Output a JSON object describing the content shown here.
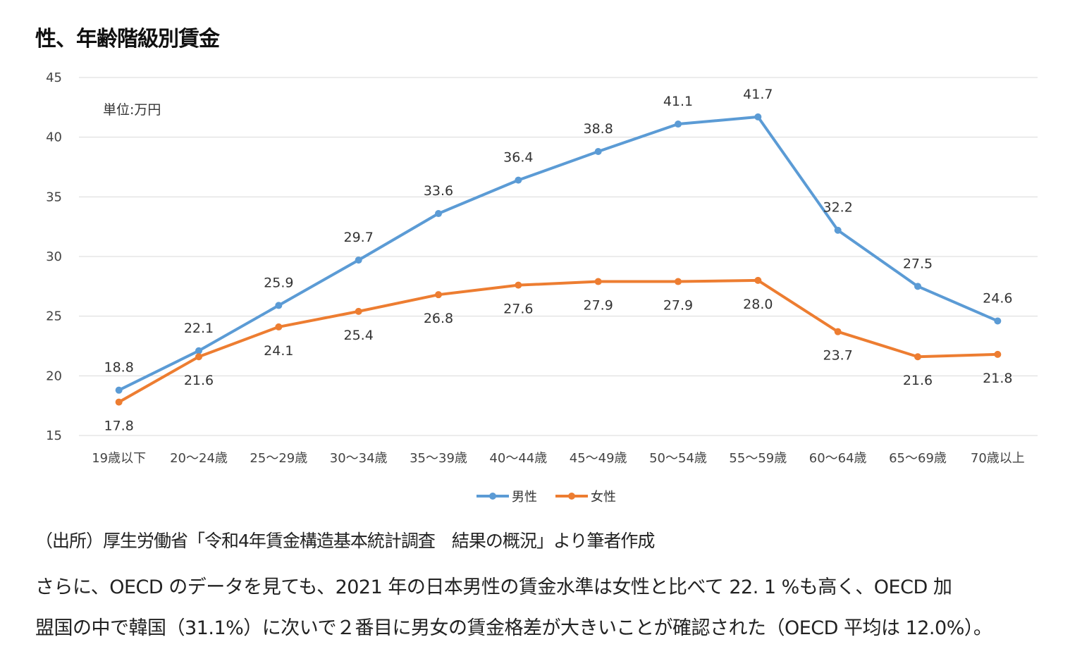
{
  "title": "性、年齢階級別賃金",
  "chart_data": {
    "type": "line",
    "unit_label": "単位:万円",
    "categories": [
      "19歳以下",
      "20～24歳",
      "25～29歳",
      "30～34歳",
      "35～39歳",
      "40～44歳",
      "45～49歳",
      "50～54歳",
      "55～59歳",
      "60～64歳",
      "65～69歳",
      "70歳以上"
    ],
    "series": [
      {
        "name": "男性",
        "color": "#5b9bd5",
        "values": [
          18.8,
          22.1,
          25.9,
          29.7,
          33.6,
          36.4,
          38.8,
          41.1,
          41.7,
          32.2,
          27.5,
          24.6
        ],
        "labels": [
          "18.8",
          "22.1",
          "25.9",
          "29.7",
          "33.6",
          "36.4",
          "38.8",
          "41.1",
          "41.7",
          "32.2",
          "27.5",
          "24.6"
        ]
      },
      {
        "name": "女性",
        "color": "#ed7d31",
        "values": [
          17.8,
          21.6,
          24.1,
          25.4,
          26.8,
          27.6,
          27.9,
          27.9,
          28.0,
          23.7,
          21.6,
          21.8
        ],
        "labels": [
          "17.8",
          "21.6",
          "24.1",
          "25.4",
          "26.8",
          "27.6",
          "27.9",
          "27.9",
          "28.0",
          "23.7",
          "21.6",
          "21.8"
        ]
      }
    ],
    "ylim": [
      15,
      45
    ],
    "yticks": [
      "15",
      "20",
      "25",
      "30",
      "35",
      "40",
      "45"
    ],
    "grid": true,
    "legend_position": "bottom"
  },
  "source": "（出所）厚生労働省「令和4年賃金構造基本統計調査　結果の概況」より筆者作成",
  "body_text": [
    "さらに、OECD のデータを見ても、2021 年の日本男性の賃金水準は女性と比べて 22. 1 %も高く、OECD 加",
    "盟国の中で韓国（31.1%）に次いで２番目に男女の賃金格差が大きいことが確認された（OECD 平均は 12.0%）。"
  ]
}
